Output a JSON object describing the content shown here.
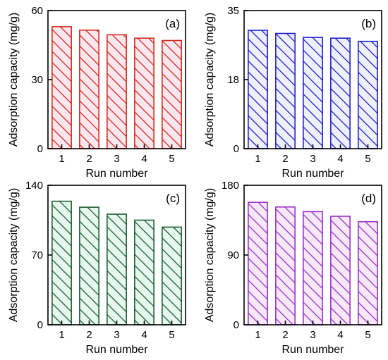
{
  "chart_data": [
    {
      "type": "bar",
      "panel_label": "(a)",
      "categories": [
        "1",
        "2",
        "3",
        "4",
        "5"
      ],
      "values": [
        53,
        51.5,
        49.5,
        48,
        47
      ],
      "xlabel": "Run number",
      "ylabel": "Adsorption capacity (mg/g)",
      "ylim": [
        0,
        60
      ],
      "yticks": [
        "0",
        "30",
        "60"
      ],
      "color": "#d42a20",
      "fill": "#fde7ef",
      "hatch": "diagonal"
    },
    {
      "type": "bar",
      "panel_label": "(b)",
      "categories": [
        "1",
        "2",
        "3",
        "4",
        "5"
      ],
      "values": [
        30,
        29.2,
        28.2,
        28,
        27.2
      ],
      "xlabel": "Run number",
      "ylabel": "Adsorption capacity (mg/g)",
      "ylim": [
        0,
        35
      ],
      "yticks": [
        "0",
        "18",
        "35"
      ],
      "color": "#2222cc",
      "fill": "#eef0fc",
      "hatch": "diagonal"
    },
    {
      "type": "bar",
      "panel_label": "(c)",
      "categories": [
        "1",
        "2",
        "3",
        "4",
        "5"
      ],
      "values": [
        124,
        118,
        111,
        105,
        98
      ],
      "xlabel": "Run number",
      "ylabel": "Adsorption capacity (mg/g)",
      "ylim": [
        0,
        140
      ],
      "yticks": [
        "0",
        "70",
        "140"
      ],
      "color": "#1f5e34",
      "fill": "#e6f7ee",
      "hatch": "diagonal"
    },
    {
      "type": "bar",
      "panel_label": "(d)",
      "categories": [
        "1",
        "2",
        "3",
        "4",
        "5"
      ],
      "values": [
        158,
        152,
        146,
        140,
        133
      ],
      "xlabel": "Run number",
      "ylabel": "Adsorption capacity (mg/g)",
      "ylim": [
        0,
        180
      ],
      "yticks": [
        "0",
        "90",
        "180"
      ],
      "color": "#9933cc",
      "fill": "#f7e8f8",
      "hatch": "diagonal"
    }
  ]
}
